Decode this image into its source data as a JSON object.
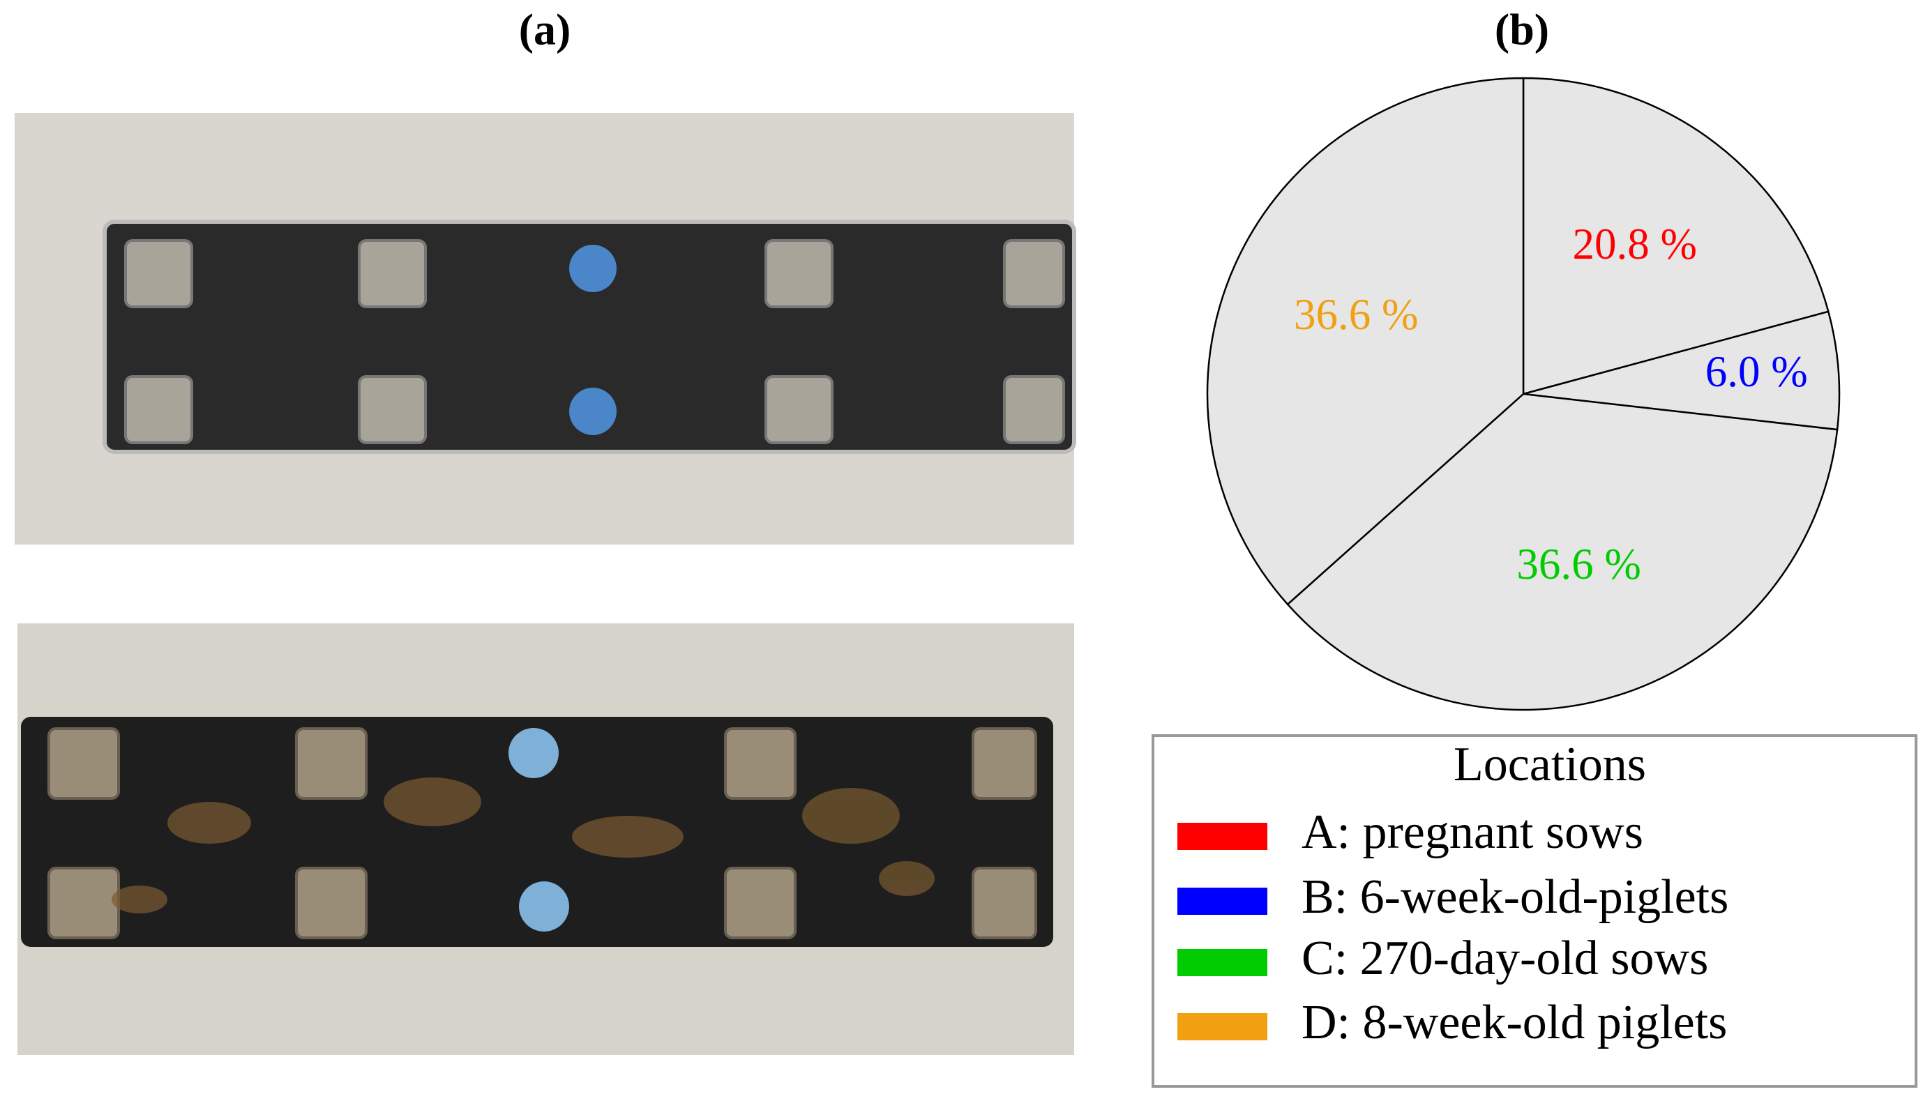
{
  "figure": {
    "panel_a_label": "(a)"
  },
  "chart_data": {
    "type": "pie",
    "title": "(b)",
    "categories": [
      "A: pregnant sows",
      "B: 6-week-old-piglets",
      "C: 270-day-old sows",
      "D: 8-week-old piglets"
    ],
    "values": [
      20.8,
      6.0,
      36.6,
      36.6
    ],
    "value_labels": [
      "20.8 %",
      "6.0 %",
      "36.6 %",
      "36.6 %"
    ],
    "colors": [
      "#ff0000",
      "#0000ff",
      "#00cc00",
      "#f0a010"
    ],
    "legend_title": "Locations"
  }
}
